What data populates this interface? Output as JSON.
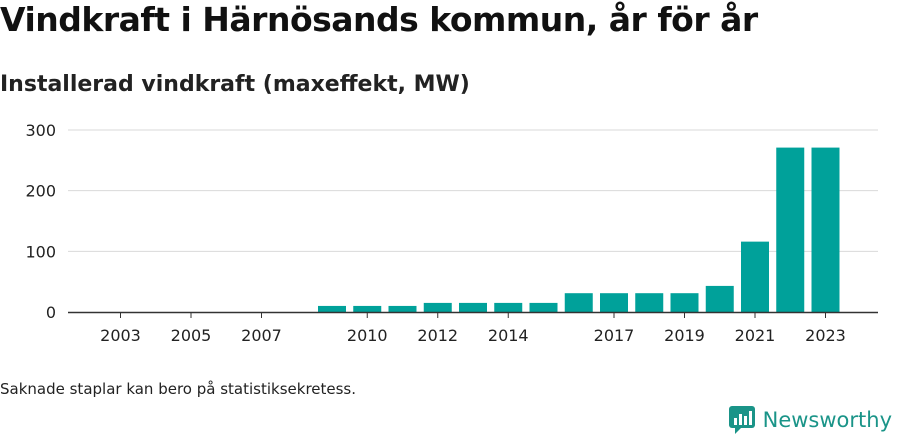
{
  "header": {
    "title": "Vindkraft i Härnösands kommun, år för år",
    "subtitle": "Installerad vindkraft (maxeffekt, MW)"
  },
  "footer": {
    "note": "Saknade staplar kan bero på statistiksekretess.",
    "brand": "Newsworthy"
  },
  "colors": {
    "bar": "#00a19a",
    "grid": "#d9d9d9",
    "axis": "#333333",
    "brand": "#1a9488"
  },
  "chart_data": {
    "type": "bar",
    "title": "Vindkraft i Härnösands kommun, år för år",
    "subtitle": "Installerad vindkraft (maxeffekt, MW)",
    "categories": [
      "2003",
      "2004",
      "2005",
      "2006",
      "2007",
      "2008",
      "2009",
      "2010",
      "2011",
      "2012",
      "2013",
      "2014",
      "2015",
      "2016",
      "2017",
      "2018",
      "2019",
      "2020",
      "2021",
      "2022",
      "2023"
    ],
    "values": [
      0,
      0,
      0,
      0,
      0,
      null,
      10,
      10,
      10,
      15,
      15,
      15,
      15,
      31,
      31,
      31,
      31,
      43,
      116,
      271,
      271
    ],
    "x_tick_labels": [
      "2003",
      "2005",
      "2007",
      "2010",
      "2012",
      "2014",
      "2017",
      "2019",
      "2021",
      "2023"
    ],
    "y_ticks": [
      0,
      100,
      200,
      300
    ],
    "ylim": [
      0,
      300
    ],
    "xlabel": "",
    "ylabel": "",
    "grid": true
  }
}
